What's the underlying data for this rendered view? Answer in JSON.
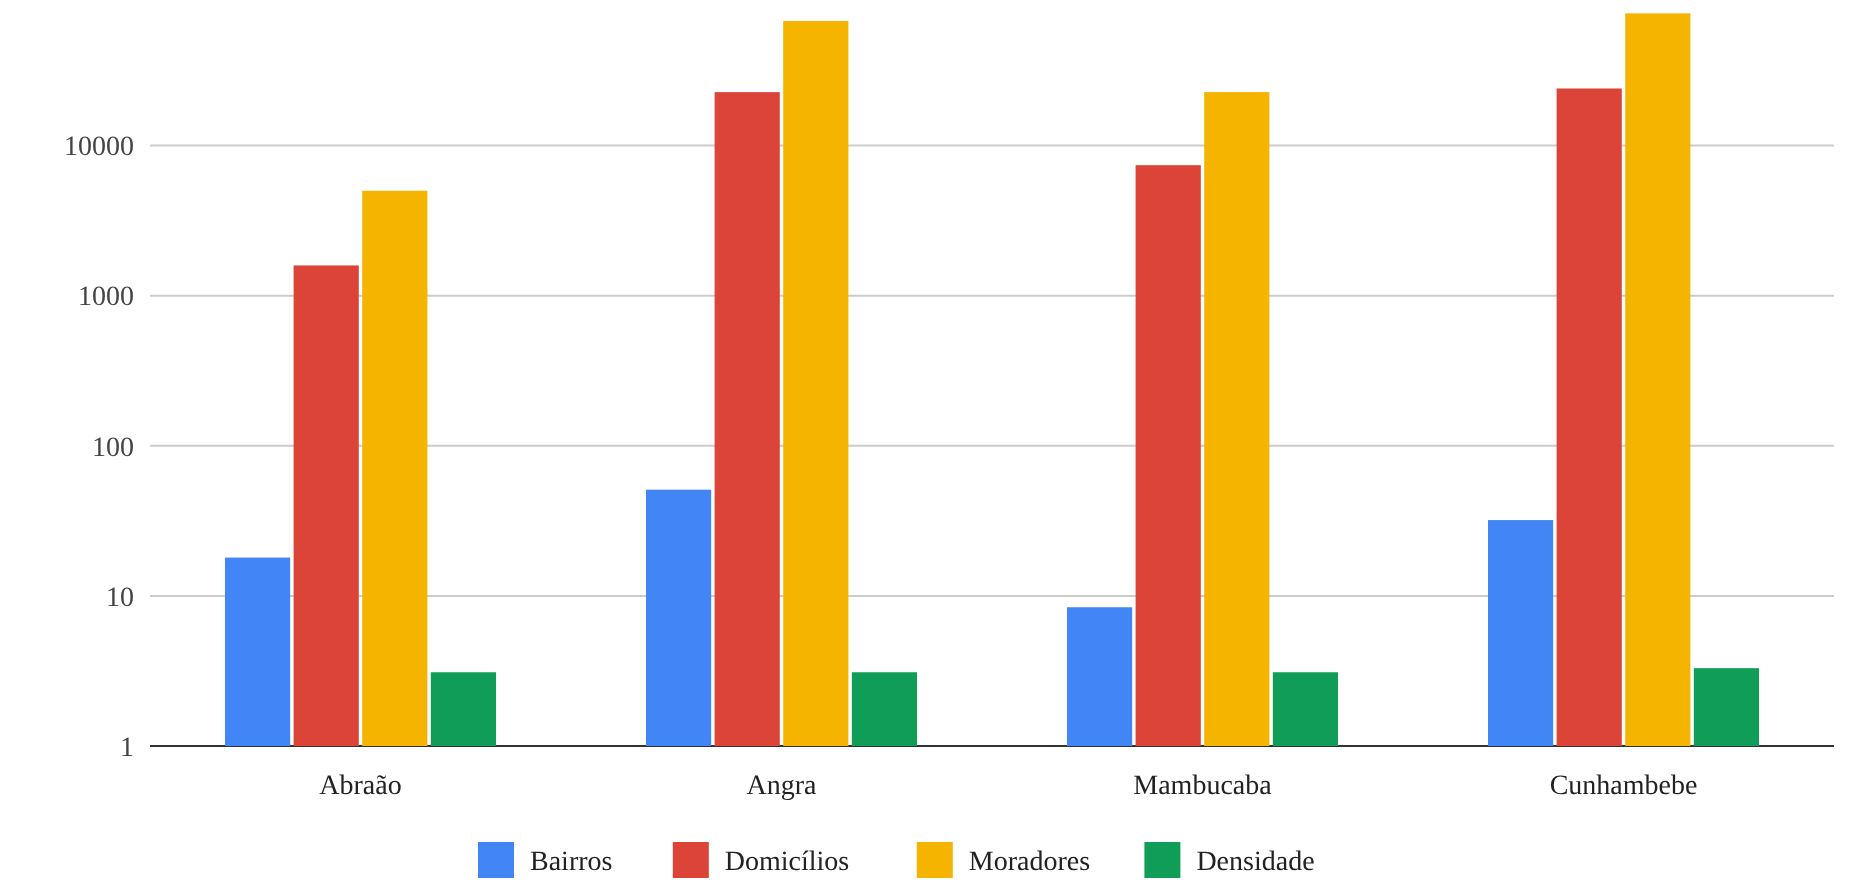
{
  "chart_data": {
    "type": "bar",
    "categories": [
      "Abraão",
      "Angra",
      "Mambucaba",
      "Cunhambebe"
    ],
    "series": [
      {
        "name": "Bairros",
        "color": "#4285f4",
        "values": [
          18,
          51,
          8.4,
          32
        ]
      },
      {
        "name": "Domicílios",
        "color": "#db4437",
        "values": [
          1590,
          22700,
          7400,
          24000
        ]
      },
      {
        "name": "Moradores",
        "color": "#f4b400",
        "values": [
          5000,
          67600,
          22700,
          76000
        ]
      },
      {
        "name": "Densidade",
        "color": "#0f9d58",
        "values": [
          3.1,
          3.1,
          3.1,
          3.3
        ]
      }
    ],
    "log": true,
    "ylim": [
      1,
      80000
    ],
    "yticks": [
      1,
      10,
      100,
      1000,
      10000
    ],
    "grid": "y",
    "legend": "bottom"
  }
}
